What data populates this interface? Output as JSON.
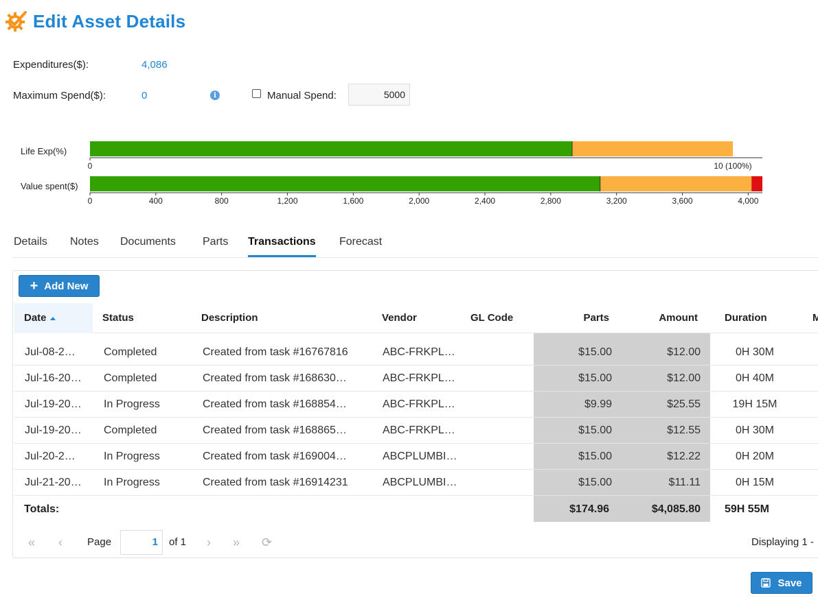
{
  "header": {
    "title": "Edit Asset Details",
    "logo_icon": "gear-check-icon"
  },
  "fields": {
    "expenditures_label": "Expenditures($):",
    "expenditures_value": "4,086",
    "max_spend_label": "Maximum Spend($):",
    "max_spend_value": "0",
    "info_icon": "i",
    "manual_spend_label": "Manual Spend:",
    "manual_spend_value": "5000",
    "manual_spend_checked": false
  },
  "gauges": {
    "colors": {
      "good": "#33a100",
      "warn": "#fbb040",
      "over": "#e01010"
    },
    "life": {
      "label": "Life Exp(%)",
      "max": 10,
      "green_until": 7.5,
      "orange_until": 10,
      "ticks": [
        "0",
        "10 (100%)"
      ]
    },
    "value": {
      "label": "Value spent($)",
      "max": 4086,
      "green_until": 3100,
      "orange_until": 4020,
      "red_until": 4086,
      "ticks": [
        "0",
        "400",
        "800",
        "1,200",
        "1,600",
        "2,000",
        "2,400",
        "2,800",
        "3,200",
        "3,600",
        "4,000"
      ],
      "tick_values": [
        0,
        400,
        800,
        1200,
        1600,
        2000,
        2400,
        2800,
        3200,
        3600,
        4000
      ]
    }
  },
  "tabs": [
    {
      "label": "Details"
    },
    {
      "label": "Notes"
    },
    {
      "label": "Documents"
    },
    {
      "label": "Parts"
    },
    {
      "label": "Transactions",
      "active": true
    },
    {
      "label": "Forecast"
    }
  ],
  "toolbar": {
    "add_new": "Add New"
  },
  "grid": {
    "columns": {
      "date": "Date",
      "status": "Status",
      "description": "Description",
      "vendor": "Vendor",
      "gl_code": "GL Code",
      "parts": "Parts",
      "amount": "Amount",
      "duration": "Duration",
      "cut": "M"
    },
    "rows": [
      {
        "date": "Jul-08-2…",
        "status": "Completed",
        "description": "Created from task #16767816",
        "vendor": "ABC-FRKPL…",
        "gl": "",
        "parts": "$15.00",
        "amount": "$12.00",
        "duration": "0H 30M"
      },
      {
        "date": "Jul-16-20…",
        "status": "Completed",
        "description": "Created from task #168630…",
        "vendor": "ABC-FRKPL…",
        "gl": "",
        "parts": "$15.00",
        "amount": "$12.00",
        "duration": "0H 40M"
      },
      {
        "date": "Jul-19-20…",
        "status": "In Progress",
        "description": "Created from task #168854…",
        "vendor": "ABC-FRKPL…",
        "gl": "",
        "parts": "$9.99",
        "amount": "$25.55",
        "duration": "19H 15M"
      },
      {
        "date": "Jul-19-20…",
        "status": "Completed",
        "description": "Created from task #168865…",
        "vendor": "ABC-FRKPL…",
        "gl": "",
        "parts": "$15.00",
        "amount": "$12.55",
        "duration": "0H 30M"
      },
      {
        "date": "Jul-20-2…",
        "status": "In Progress",
        "description": "Created from task #169004…",
        "vendor": "ABCPLUMBI…",
        "gl": "",
        "parts": "$15.00",
        "amount": "$12.22",
        "duration": "0H 20M"
      },
      {
        "date": "Jul-21-20…",
        "status": "In Progress",
        "description": "Created from task #16914231",
        "vendor": "ABCPLUMBI…",
        "gl": "",
        "parts": "$15.00",
        "amount": "$11.11",
        "duration": "0H 15M"
      }
    ],
    "totals": {
      "label": "Totals:",
      "parts": "$174.96",
      "amount": "$4,085.80",
      "duration": "59H 55M"
    }
  },
  "pager": {
    "page_label": "Page",
    "page_value": "1",
    "of_label": "of 1",
    "displaying": "Displaying 1 -"
  },
  "footer": {
    "save_label": "Save"
  }
}
